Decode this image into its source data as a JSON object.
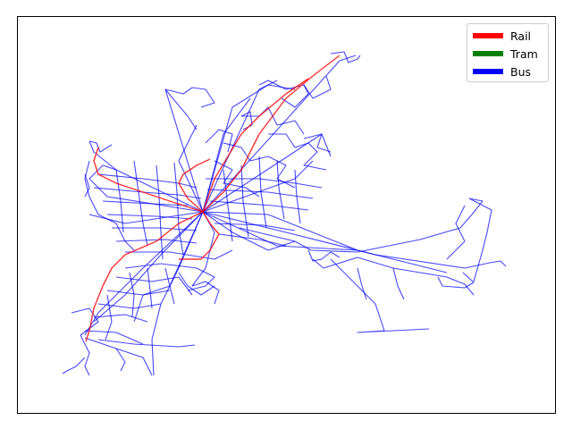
{
  "legend": {
    "items": [
      {
        "label": "Rail",
        "color": "#ff0000"
      },
      {
        "label": "Tram",
        "color": "#008000"
      },
      {
        "label": "Bus",
        "color": "#0000ff"
      }
    ]
  },
  "map": {
    "axes_ticks": false,
    "frame_color": "#000000"
  }
}
